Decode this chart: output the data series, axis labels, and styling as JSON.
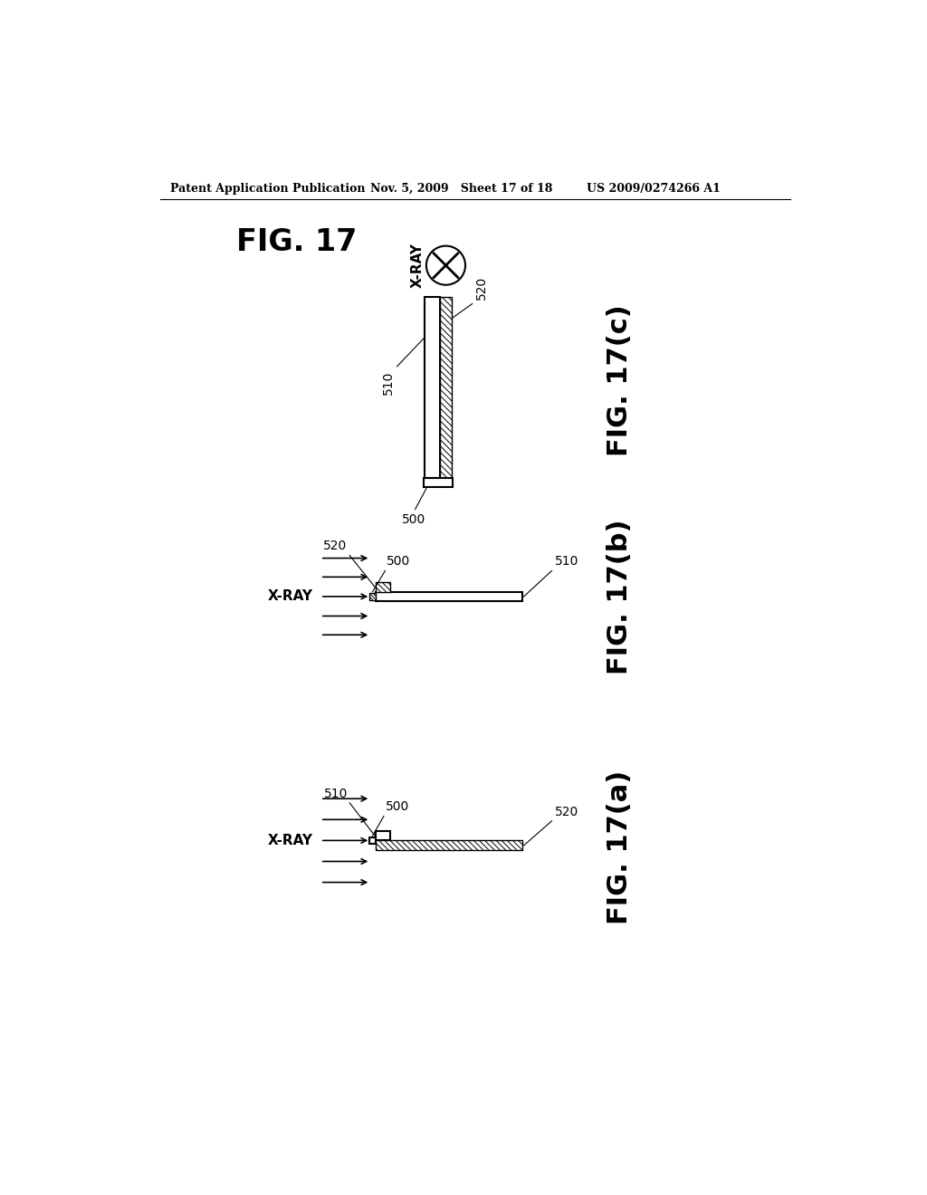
{
  "bg_color": "#ffffff",
  "header_left": "Patent Application Publication",
  "header_mid": "Nov. 5, 2009   Sheet 17 of 18",
  "header_right": "US 2009/0274266 A1",
  "fig_title": "FIG. 17",
  "fig_a_label": "FIG. 17(a)",
  "fig_b_label": "FIG. 17(b)",
  "fig_c_label": "FIG. 17(c)",
  "xray_label": "X-RAY",
  "label_500": "500",
  "label_510": "510",
  "label_520": "520"
}
